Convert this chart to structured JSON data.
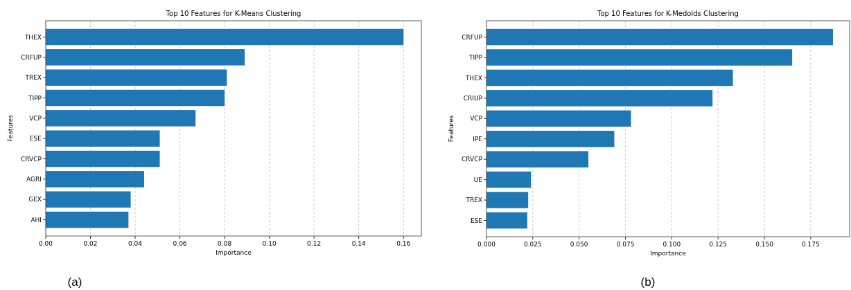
{
  "chart_data": [
    {
      "type": "bar",
      "orientation": "horizontal",
      "title": "Top 10 Features for K-Means Clustering",
      "xlabel": "Importance",
      "ylabel": "Features",
      "categories": [
        "THEX",
        "CRFUP",
        "TREX",
        "TIPP",
        "VCP",
        "ESE",
        "CRVCP",
        "AGRI",
        "GEX",
        "AHI"
      ],
      "values": [
        0.16,
        0.089,
        0.081,
        0.08,
        0.067,
        0.051,
        0.051,
        0.044,
        0.038,
        0.037
      ],
      "color": "#1f77b4",
      "xlim": [
        0,
        0.168
      ],
      "xticks": [
        {
          "value": 0,
          "label": "0.00"
        },
        {
          "value": 0.02,
          "label": "0.02"
        },
        {
          "value": 0.04,
          "label": "0.04"
        },
        {
          "value": 0.06,
          "label": "0.06"
        },
        {
          "value": 0.08,
          "label": "0.08"
        },
        {
          "value": 0.1,
          "label": "0.10"
        },
        {
          "value": 0.12,
          "label": "0.12"
        },
        {
          "value": 0.14,
          "label": "0.14"
        },
        {
          "value": 0.16,
          "label": "0.16"
        }
      ],
      "grid": "x",
      "annotations": [
        "(a)"
      ]
    },
    {
      "type": "bar",
      "orientation": "horizontal",
      "title": "Top 10 Features for K-Medoids Clustering",
      "xlabel": "Importance",
      "ylabel": "Features",
      "categories": [
        "CRFUP",
        "TIPP",
        "THEX",
        "CRIUP",
        "VCP",
        "IPE",
        "CRVCP",
        "UE",
        "TREX",
        "ESE"
      ],
      "values": [
        0.187,
        0.165,
        0.133,
        0.122,
        0.078,
        0.069,
        0.055,
        0.024,
        0.0225,
        0.022
      ],
      "color": "#1f77b4",
      "xlim": [
        0,
        0.196
      ],
      "xticks": [
        {
          "value": 0,
          "label": "0.000"
        },
        {
          "value": 0.025,
          "label": "0.025"
        },
        {
          "value": 0.05,
          "label": "0.050"
        },
        {
          "value": 0.075,
          "label": "0.075"
        },
        {
          "value": 0.1,
          "label": "0.100"
        },
        {
          "value": 0.125,
          "label": "0.125"
        },
        {
          "value": 0.15,
          "label": "0.150"
        },
        {
          "value": 0.175,
          "label": "0.175"
        }
      ],
      "grid": "x",
      "annotations": [
        "(b)"
      ]
    }
  ]
}
